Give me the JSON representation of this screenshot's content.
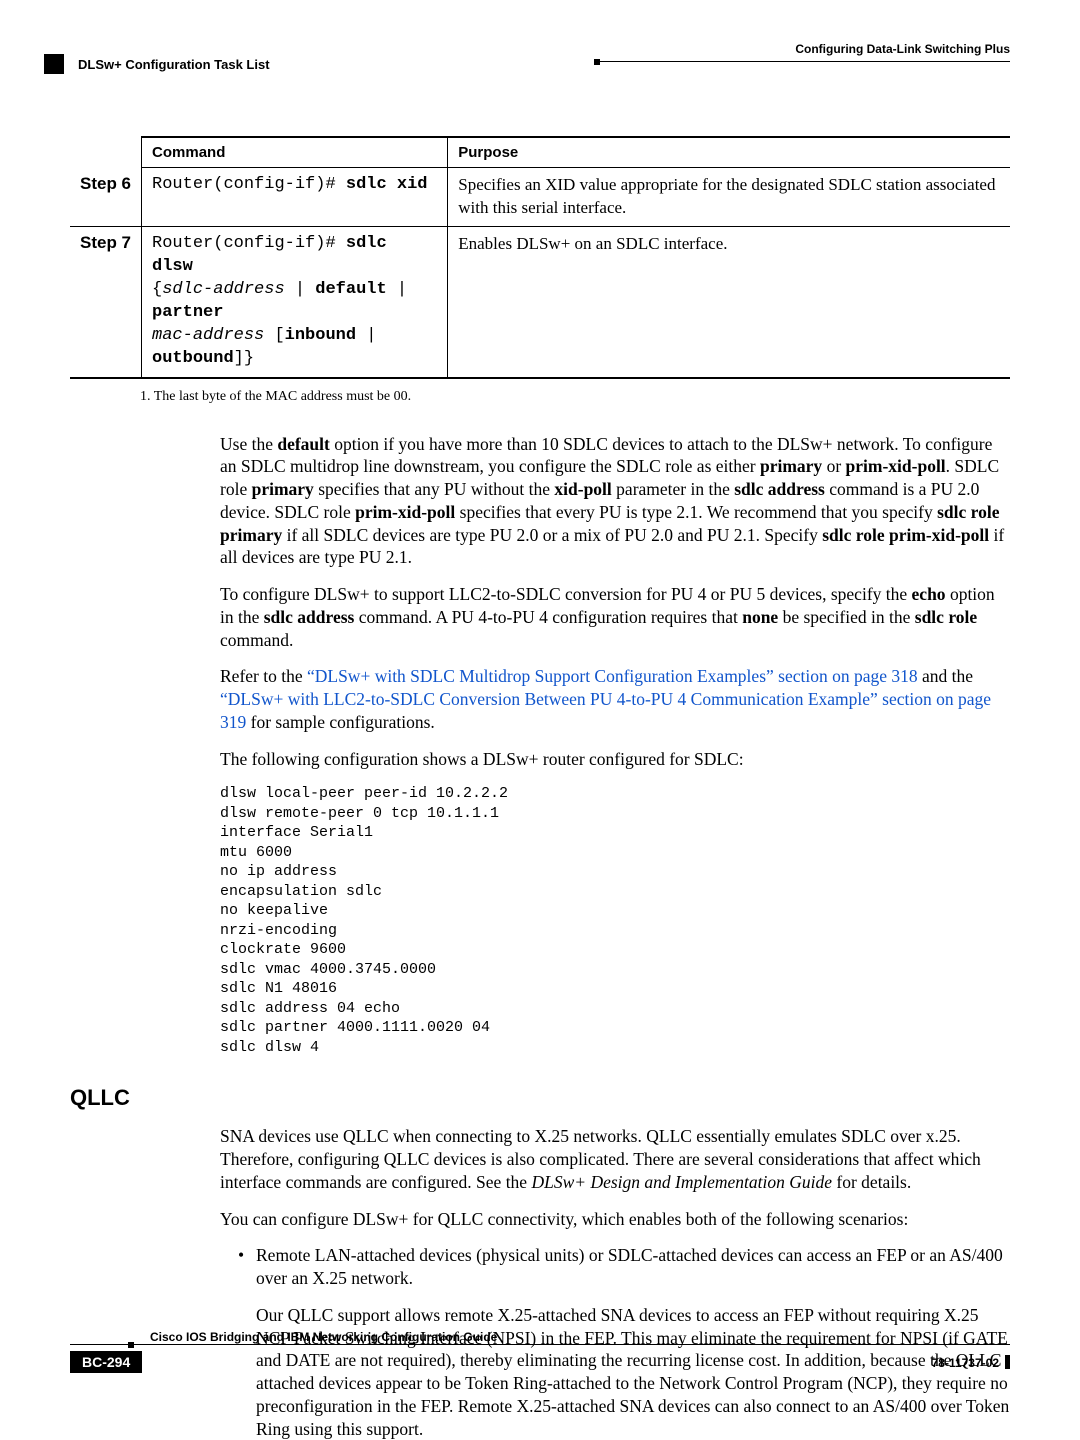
{
  "header": {
    "chapter": "Configuring Data-Link Switching Plus",
    "subsection": "DLSw+ Configuration Task List"
  },
  "table": {
    "col_command": "Command",
    "col_purpose": "Purpose",
    "step6_label": "Step 6",
    "step6_prompt": "Router(config-if)# ",
    "step6_cmd": "sdlc xid",
    "step6_purpose": "Specifies an XID value appropriate for the designated SDLC station associated with this serial interface.",
    "step7_label": "Step 7",
    "step7_prompt": "Router(config-if)# ",
    "step7_cmd1": "sdlc dlsw",
    "step7_arg1": "sdlc-address",
    "step7_or1": " | ",
    "step7_def": "default",
    "step7_or2": " | ",
    "step7_part": "partner",
    "step7_arg2": "mac-address",
    "step7_lb": " [",
    "step7_in": "inbound",
    "step7_or3": " | ",
    "step7_out": "outbound",
    "step7_rb": "]}",
    "step7_open": "{",
    "step7_purpose": "Enables DLSw+ on an SDLC interface.",
    "footnote": "1.   The last byte of the MAC address must be 00."
  },
  "body": {
    "p1a": "Use the ",
    "p1_default": "default",
    "p1b": " option if you have more than 10 SDLC devices to attach to the DLSw+ network. To configure an SDLC multidrop line downstream, you configure the SDLC role as either ",
    "p1_primary": "primary",
    "p1c": " or ",
    "p1_pxp": "prim-xid-poll",
    "p1d": ". SDLC role ",
    "p1_primary2": "primary",
    "p1e": " specifies that any PU without the ",
    "p1_xidpoll": "xid-poll",
    "p1f": " parameter in the ",
    "p1_sdlcaddr": "sdlc address",
    "p1g": " command is a PU 2.0 device. SDLC role ",
    "p1_pxp2": "prim-xid-poll",
    "p1h": " specifies that every PU is type 2.1. We recommend that you specify ",
    "p1_srp": "sdlc role primary",
    "p1i": " if all SDLC devices are type PU 2.0 or a mix of PU 2.0 and PU 2.1. Specify ",
    "p1_srpxp": "sdlc role prim-xid-poll",
    "p1j": " if all devices are type PU 2.1.",
    "p2a": "To configure DLSw+ to support LLC2-to-SDLC conversion for PU 4 or PU 5 devices, specify the ",
    "p2_echo": "echo",
    "p2b": " option in the ",
    "p2_sdlcaddr": "sdlc address",
    "p2c": " command. A PU 4-to-PU 4 configuration requires that ",
    "p2_none": "none",
    "p2d": " be specified in the ",
    "p2_sdlcrole": "sdlc role",
    "p2e": " command.",
    "p3a": "Refer to the ",
    "p3_link1": "“DLSw+ with SDLC Multidrop Support Configuration Examples” section on page 318",
    "p3b": " and the ",
    "p3_link2": "“DLSw+ with LLC2-to-SDLC Conversion Between PU 4-to-PU 4 Communication Example” section on page 319",
    "p3c": " for sample configurations.",
    "p4": "The following configuration shows a DLSw+ router configured for SDLC:",
    "config": "dlsw local-peer peer-id 10.2.2.2\ndlsw remote-peer 0 tcp 10.1.1.1\ninterface Serial1\nmtu 6000\nno ip address\nencapsulation sdlc\nno keepalive\nnrzi-encoding\nclockrate 9600\nsdlc vmac 4000.3745.0000\nsdlc N1 48016\nsdlc address 04 echo\nsdlc partner 4000.1111.0020 04\nsdlc dlsw 4"
  },
  "qllc": {
    "heading": "QLLC",
    "p1a": "SNA devices use QLLC when connecting to X.25 networks. QLLC essentially emulates SDLC over x.25. Therefore, configuring QLLC devices is also complicated. There are several considerations that affect which interface commands are configured. See the ",
    "p1_em": "DLSw+ Design and Implementation Guide",
    "p1b": " for details.",
    "p2": "You can configure DLSw+ for QLLC connectivity, which enables both of the following scenarios:",
    "b1": "Remote LAN-attached devices (physical units) or SDLC-attached devices can access an FEP or an AS/400 over an X.25 network.",
    "b1b": "Our QLLC support allows remote X.25-attached SNA devices to access an FEP without requiring X.25 NCP Packet Switching Interface (NPSI) in the FEP. This may eliminate the requirement for NPSI (if GATE and DATE are not required), thereby eliminating the recurring license cost. In addition, because the QLLC attached devices appear to be Token Ring-attached to the Network Control Program (NCP), they require no preconfiguration in the FEP. Remote X.25-attached SNA devices can also connect to an AS/400 over Token Ring using this support."
  },
  "footer": {
    "title": "Cisco IOS Bridging and IBM Networking Configuration Guide",
    "page": "BC-294",
    "doc": "78-11737-02"
  }
}
